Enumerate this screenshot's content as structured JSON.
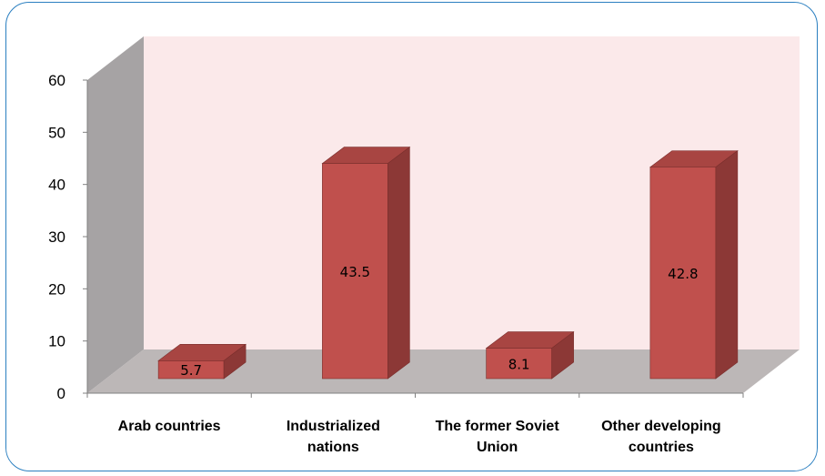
{
  "chart_data": {
    "type": "bar",
    "title": "",
    "xlabel": "",
    "ylabel": "",
    "categories": [
      [
        "Arab countries"
      ],
      [
        "Industrialized",
        "nations"
      ],
      [
        "The former Soviet",
        "Union"
      ],
      [
        "Other developing",
        "countries"
      ]
    ],
    "values": [
      5.7,
      43.5,
      8.1,
      42.8
    ],
    "value_labels": [
      "5.7",
      "43.5",
      "8.1",
      "42.8"
    ],
    "ylim": [
      0,
      60
    ],
    "yticks": [
      "0",
      "10",
      "20",
      "30",
      "40",
      "50",
      "60"
    ],
    "three_d": true,
    "colors": {
      "bar_front": "#c0504d",
      "bar_top": "#a84542",
      "bar_side": "#8c3836",
      "back_wall": "#fbe9ea",
      "side_wall": "#a6a3a4",
      "floor": "#bcb7b7",
      "border": "#2a7fc0"
    }
  }
}
